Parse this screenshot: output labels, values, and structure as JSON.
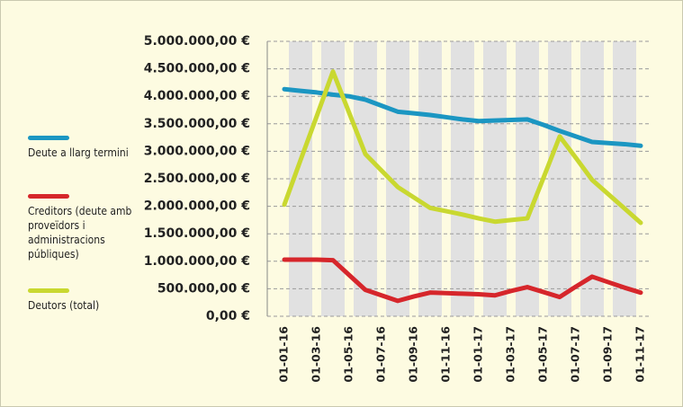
{
  "chart_data": {
    "type": "line",
    "categories": [
      "01-01-16",
      null,
      "01-03-16",
      null,
      "01-05-16",
      null,
      "01-07-16",
      null,
      "01-09-16",
      null,
      "01-11-16",
      null,
      "01-01-17",
      null,
      "01-03-17",
      null,
      "01-05-17",
      null,
      "01-07-17",
      null,
      "01-09-17",
      null,
      "01-11-17"
    ],
    "series": [
      {
        "name": "Deute a llarg termini",
        "color": "#1b96c2",
        "values": [
          4130000,
          4100000,
          4070000,
          4030000,
          4000000,
          3940000,
          3830000,
          3720000,
          3690000,
          3660000,
          3620000,
          3580000,
          3550000,
          3560000,
          3570000,
          3580000,
          3480000,
          3370000,
          3270000,
          3170000,
          3150000,
          3130000,
          3100000
        ]
      },
      {
        "name": "Creditors (deute amb proveïdors i administracions públiques)",
        "color": "#d6262b",
        "values": [
          1030000,
          1030000,
          1030000,
          1020000,
          750000,
          480000,
          380000,
          280000,
          360000,
          430000,
          420000,
          410000,
          400000,
          380000,
          460000,
          530000,
          440000,
          350000,
          540000,
          720000,
          620000,
          520000,
          430000
        ]
      },
      {
        "name": "Deutors (total)",
        "color": "#c9d830",
        "values": [
          2030000,
          2840000,
          3640000,
          4450000,
          3700000,
          2950000,
          2650000,
          2350000,
          2160000,
          1970000,
          1910000,
          1850000,
          1780000,
          1720000,
          1750000,
          1780000,
          2520000,
          3270000,
          2880000,
          2480000,
          2220000,
          1960000,
          1700000
        ]
      }
    ],
    "ylim": [
      0,
      5000000
    ],
    "yticks": [
      {
        "value": 0,
        "label": "0,00 €"
      },
      {
        "value": 500000,
        "label": "500.000,00 €"
      },
      {
        "value": 1000000,
        "label": "1.000.000,00 €"
      },
      {
        "value": 1500000,
        "label": "1.500.000,00 €"
      },
      {
        "value": 2000000,
        "label": "2.000.000,00 €"
      },
      {
        "value": 2500000,
        "label": "2.500.000,00 €"
      },
      {
        "value": 3000000,
        "label": "3.000.000,00 €"
      },
      {
        "value": 3500000,
        "label": "3.500.000,00 €"
      },
      {
        "value": 4000000,
        "label": "4.000.000,00 €"
      },
      {
        "value": 4500000,
        "label": "4.500.000,00 €"
      },
      {
        "value": 5000000,
        "label": "5.000.000,00 €"
      }
    ],
    "grid": true,
    "legend": "left"
  }
}
